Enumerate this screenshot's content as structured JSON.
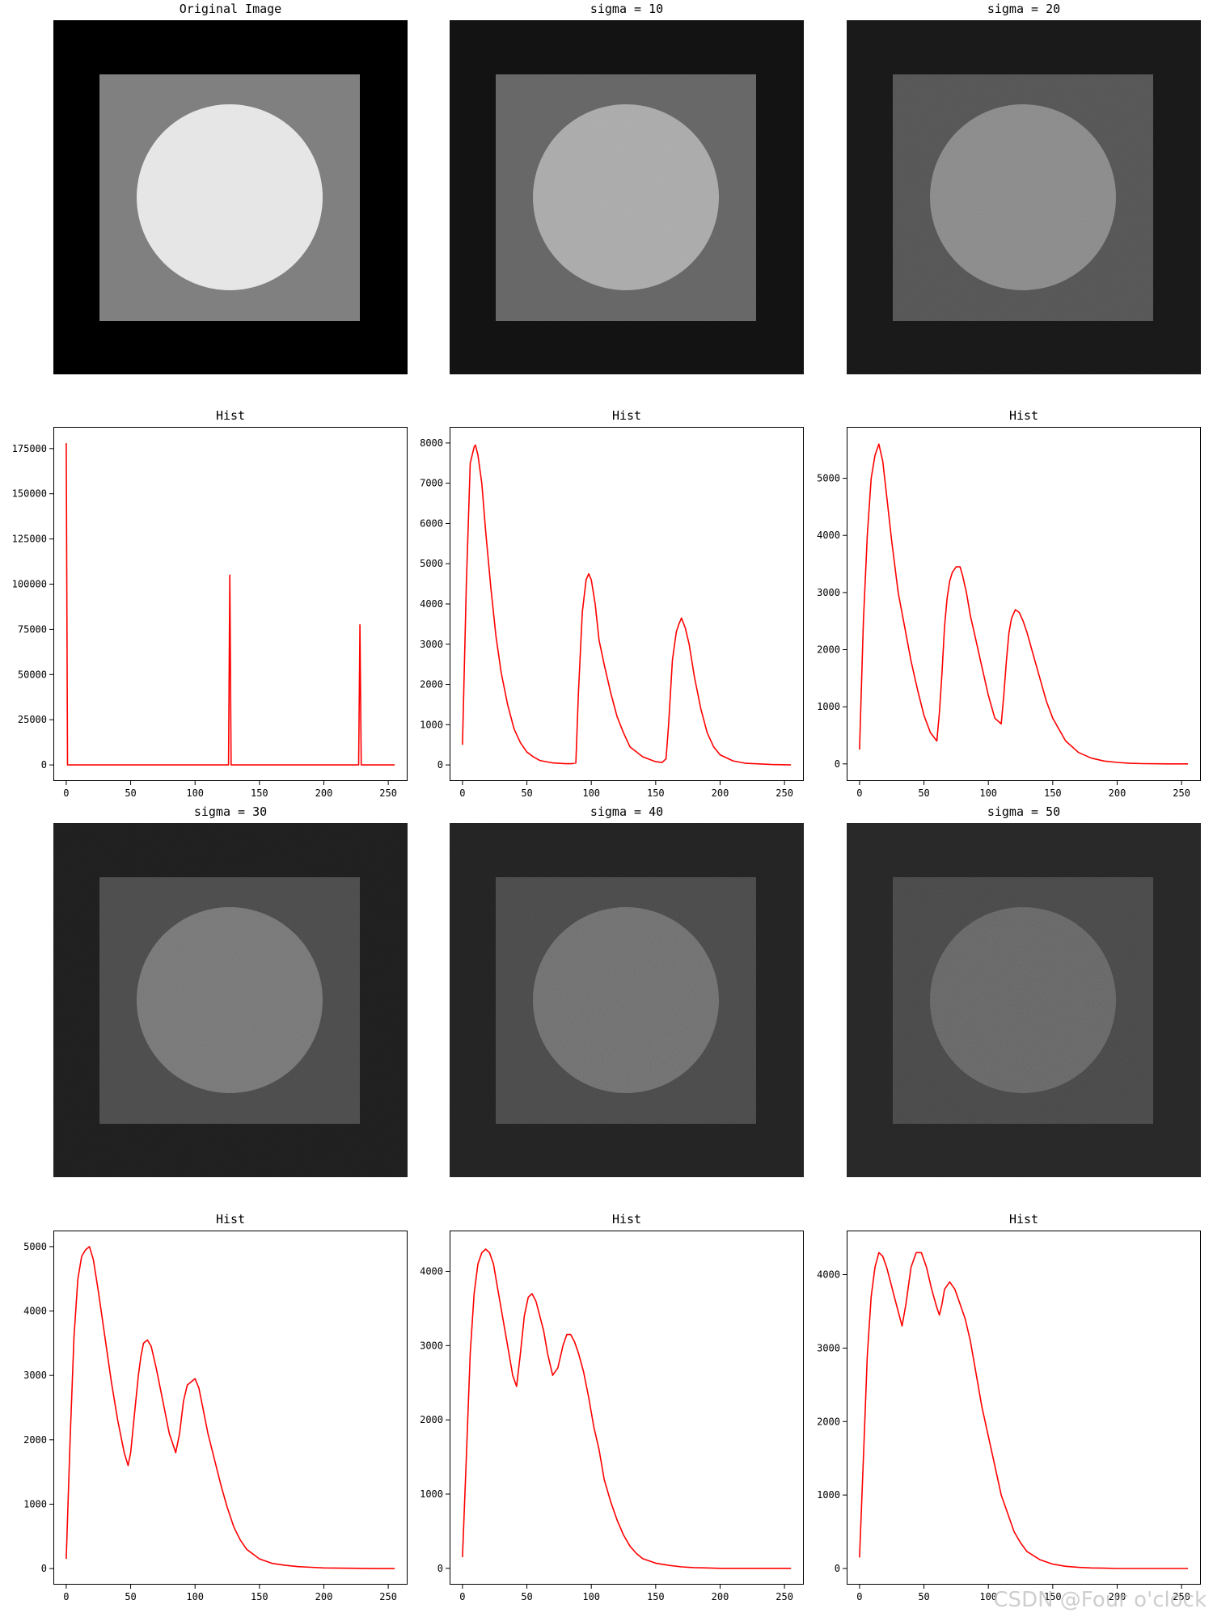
{
  "watermark": "CSDN @Four o'clock",
  "images": [
    {
      "title": "Original Image",
      "background": "#000000",
      "square": "#808080",
      "circle": "#e6e6e6",
      "noise": 0
    },
    {
      "title": "sigma = 10",
      "background": "#121212",
      "square": "#656565",
      "circle": "#aaaaaa",
      "noise": 0.25
    },
    {
      "title": "sigma = 20",
      "background": "#181818",
      "square": "#545454",
      "circle": "#888888",
      "noise": 0.45
    },
    {
      "title": "sigma = 30",
      "background": "#1e1e1e",
      "square": "#4a4a4a",
      "circle": "#747474",
      "noise": 0.6
    },
    {
      "title": "sigma = 40",
      "background": "#222222",
      "square": "#484848",
      "circle": "#6c6c6c",
      "noise": 0.75
    },
    {
      "title": "sigma = 50",
      "background": "#252525",
      "square": "#464646",
      "circle": "#626262",
      "noise": 0.9
    }
  ],
  "chart_data": [
    {
      "type": "line",
      "title": "Hist",
      "color": "#ff0000",
      "xlim": [
        -10,
        265
      ],
      "ylim": [
        -8900,
        187000
      ],
      "xticks": [
        0,
        50,
        100,
        150,
        200,
        250
      ],
      "yticks": [
        0,
        25000,
        50000,
        75000,
        100000,
        125000,
        150000,
        175000
      ],
      "series": [
        {
          "x": [
            0,
            1,
            2,
            126,
            127,
            128,
            129,
            227,
            228,
            229,
            230,
            255
          ],
          "y": [
            178000,
            0,
            0,
            0,
            105000,
            0,
            0,
            0,
            77500,
            0,
            0,
            0
          ]
        }
      ]
    },
    {
      "type": "line",
      "title": "Hist",
      "color": "#ff0000",
      "xlim": [
        -10,
        265
      ],
      "ylim": [
        -400,
        8400
      ],
      "xticks": [
        0,
        50,
        100,
        150,
        200,
        250
      ],
      "yticks": [
        0,
        1000,
        2000,
        3000,
        4000,
        5000,
        6000,
        7000,
        8000
      ],
      "series": [
        {
          "x": [
            0,
            3,
            6,
            9,
            10,
            12,
            15,
            18,
            22,
            26,
            30,
            35,
            40,
            45,
            50,
            55,
            60,
            70,
            80,
            85,
            88,
            90,
            93,
            96,
            98,
            100,
            103,
            106,
            110,
            115,
            120,
            125,
            130,
            140,
            150,
            155,
            158,
            160,
            163,
            166,
            168,
            170,
            173,
            176,
            180,
            185,
            190,
            195,
            200,
            210,
            220,
            240,
            255
          ],
          "y": [
            500,
            4500,
            7500,
            7900,
            7950,
            7700,
            7000,
            5800,
            4400,
            3200,
            2300,
            1500,
            900,
            550,
            320,
            200,
            110,
            50,
            30,
            30,
            50,
            1800,
            3800,
            4600,
            4750,
            4600,
            4000,
            3100,
            2500,
            1800,
            1200,
            800,
            450,
            200,
            80,
            60,
            150,
            1000,
            2600,
            3300,
            3500,
            3650,
            3400,
            3000,
            2200,
            1400,
            800,
            450,
            250,
            100,
            40,
            10,
            0
          ]
        }
      ]
    },
    {
      "type": "line",
      "title": "Hist",
      "color": "#ff0000",
      "xlim": [
        -10,
        265
      ],
      "ylim": [
        -300,
        5900
      ],
      "xticks": [
        0,
        50,
        100,
        150,
        200,
        250
      ],
      "yticks": [
        0,
        1000,
        2000,
        3000,
        4000,
        5000
      ],
      "series": [
        {
          "x": [
            0,
            3,
            6,
            9,
            12,
            15,
            18,
            21,
            25,
            30,
            35,
            40,
            45,
            50,
            55,
            60,
            62,
            64,
            66,
            68,
            70,
            72,
            75,
            78,
            80,
            83,
            86,
            90,
            95,
            100,
            105,
            110,
            112,
            114,
            116,
            118,
            121,
            124,
            127,
            130,
            135,
            140,
            145,
            150,
            160,
            170,
            180,
            190,
            200,
            210,
            220,
            240,
            255
          ],
          "y": [
            250,
            2500,
            4000,
            5000,
            5400,
            5600,
            5300,
            4700,
            3900,
            3000,
            2400,
            1800,
            1300,
            850,
            550,
            400,
            900,
            1600,
            2400,
            2900,
            3200,
            3350,
            3450,
            3450,
            3300,
            3000,
            2600,
            2200,
            1700,
            1200,
            800,
            700,
            1200,
            1800,
            2300,
            2550,
            2700,
            2650,
            2500,
            2300,
            1900,
            1500,
            1100,
            800,
            400,
            200,
            100,
            50,
            25,
            10,
            5,
            0,
            0
          ]
        }
      ]
    },
    {
      "type": "line",
      "title": "Hist",
      "color": "#ff0000",
      "xlim": [
        -10,
        265
      ],
      "ylim": [
        -250,
        5250
      ],
      "xticks": [
        0,
        50,
        100,
        150,
        200,
        250
      ],
      "yticks": [
        0,
        1000,
        2000,
        3000,
        4000,
        5000
      ],
      "series": [
        {
          "x": [
            0,
            3,
            6,
            9,
            12,
            15,
            18,
            21,
            25,
            30,
            35,
            40,
            45,
            48,
            50,
            53,
            56,
            58,
            60,
            63,
            66,
            70,
            75,
            80,
            85,
            88,
            91,
            94,
            97,
            100,
            103,
            106,
            110,
            115,
            120,
            125,
            130,
            135,
            140,
            150,
            160,
            170,
            180,
            190,
            200,
            220,
            240,
            255
          ],
          "y": [
            150,
            2000,
            3600,
            4500,
            4850,
            4950,
            5000,
            4800,
            4300,
            3600,
            2900,
            2300,
            1800,
            1600,
            1800,
            2400,
            3000,
            3300,
            3500,
            3550,
            3450,
            3100,
            2600,
            2100,
            1800,
            2100,
            2600,
            2850,
            2900,
            2950,
            2800,
            2500,
            2100,
            1700,
            1300,
            950,
            650,
            450,
            300,
            150,
            80,
            50,
            30,
            20,
            10,
            5,
            0,
            0
          ]
        }
      ]
    },
    {
      "type": "line",
      "title": "Hist",
      "color": "#ff0000",
      "xlim": [
        -10,
        265
      ],
      "ylim": [
        -220,
        4550
      ],
      "xticks": [
        0,
        50,
        100,
        150,
        200,
        250
      ],
      "yticks": [
        0,
        1000,
        2000,
        3000,
        4000
      ],
      "series": [
        {
          "x": [
            0,
            3,
            6,
            9,
            12,
            15,
            18,
            21,
            24,
            27,
            30,
            33,
            36,
            39,
            42,
            45,
            48,
            51,
            54,
            57,
            60,
            63,
            66,
            70,
            74,
            78,
            81,
            84,
            87,
            90,
            94,
            98,
            102,
            106,
            110,
            115,
            120,
            125,
            130,
            135,
            140,
            150,
            160,
            170,
            180,
            190,
            200,
            220,
            240,
            255
          ],
          "y": [
            150,
            1500,
            2900,
            3700,
            4100,
            4250,
            4300,
            4250,
            4100,
            3800,
            3500,
            3200,
            2900,
            2600,
            2450,
            2900,
            3400,
            3650,
            3700,
            3600,
            3400,
            3200,
            2900,
            2600,
            2700,
            3000,
            3150,
            3150,
            3050,
            2900,
            2650,
            2300,
            1900,
            1600,
            1200,
            900,
            650,
            450,
            300,
            200,
            130,
            70,
            40,
            20,
            10,
            5,
            0,
            0,
            0,
            0
          ]
        }
      ]
    },
    {
      "type": "line",
      "title": "Hist",
      "color": "#ff0000",
      "xlim": [
        -10,
        265
      ],
      "ylim": [
        -220,
        4600
      ],
      "xticks": [
        0,
        50,
        100,
        150,
        200,
        250
      ],
      "yticks": [
        0,
        1000,
        2000,
        3000,
        4000
      ],
      "series": [
        {
          "x": [
            0,
            3,
            6,
            9,
            12,
            15,
            18,
            21,
            24,
            27,
            30,
            33,
            36,
            40,
            44,
            48,
            52,
            56,
            60,
            62,
            64,
            66,
            70,
            74,
            78,
            82,
            86,
            90,
            95,
            100,
            105,
            110,
            115,
            120,
            125,
            130,
            140,
            150,
            160,
            170,
            180,
            190,
            200,
            220,
            240,
            255
          ],
          "y": [
            150,
            1500,
            2900,
            3700,
            4100,
            4300,
            4250,
            4100,
            3900,
            3700,
            3500,
            3300,
            3600,
            4100,
            4300,
            4300,
            4100,
            3800,
            3550,
            3450,
            3600,
            3800,
            3900,
            3800,
            3600,
            3400,
            3100,
            2700,
            2200,
            1800,
            1400,
            1000,
            750,
            500,
            350,
            230,
            120,
            60,
            30,
            15,
            8,
            5,
            0,
            0,
            0,
            0
          ]
        }
      ]
    }
  ]
}
